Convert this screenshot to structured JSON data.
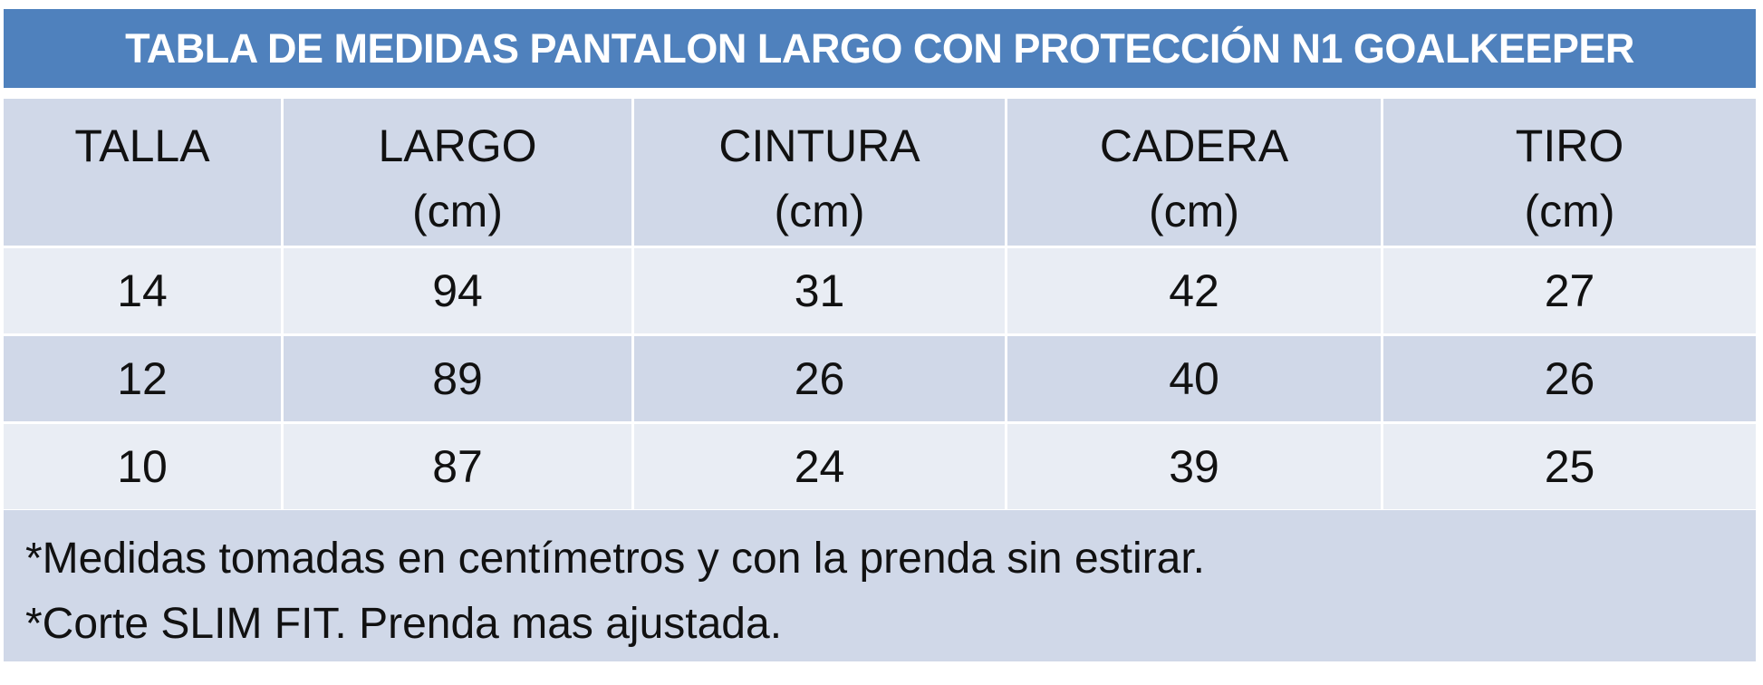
{
  "title": "TABLA DE MEDIDAS PANTALON LARGO CON PROTECCIÓN N1 GOALKEEPER",
  "table": {
    "columns": [
      {
        "label": "TALLA"
      },
      {
        "label": "LARGO",
        "unit": "(cm)"
      },
      {
        "label": "CINTURA",
        "unit": "(cm)"
      },
      {
        "label": "CADERA",
        "unit": "(cm)"
      },
      {
        "label": "TIRO",
        "unit": "(cm)"
      }
    ],
    "rows": [
      [
        14,
        94,
        31,
        42,
        27
      ],
      [
        12,
        89,
        26,
        40,
        26
      ],
      [
        10,
        87,
        24,
        39,
        25
      ]
    ]
  },
  "notes": [
    "*Medidas tomadas en centímetros y con la prenda sin estirar.",
    "*Corte SLIM FIT. Prenda mas ajustada."
  ]
}
